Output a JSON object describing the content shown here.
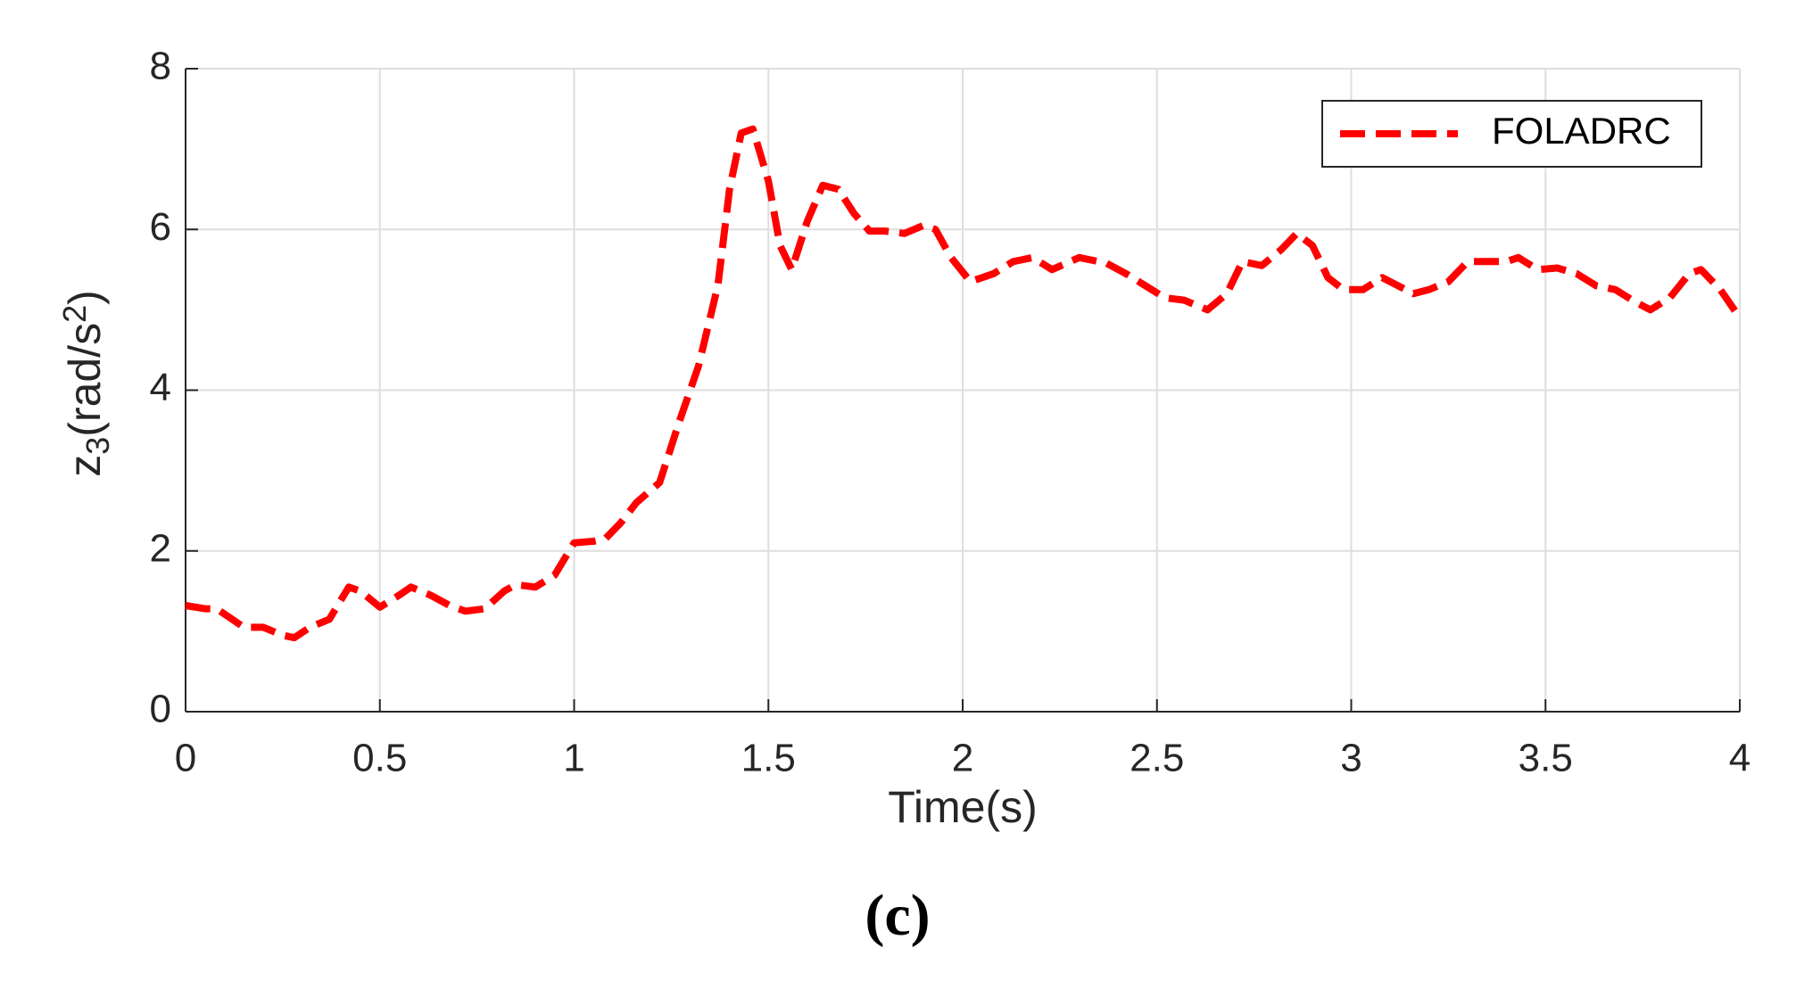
{
  "chart_data": {
    "type": "line",
    "xlabel": "Time(s)",
    "ylabel": [
      "z",
      "3",
      "(rad/s",
      "2",
      ")"
    ],
    "caption": "(c)",
    "xlim": [
      0,
      4
    ],
    "ylim": [
      0,
      8
    ],
    "xticks": [
      0,
      0.5,
      1,
      1.5,
      2,
      2.5,
      3,
      3.5,
      4
    ],
    "yticks": [
      0,
      2,
      4,
      6,
      8
    ],
    "grid": true,
    "legend": "top-right",
    "series": [
      {
        "name": "FOLADRC",
        "color": "#ff0000",
        "x": [
          0,
          0.05,
          0.08,
          0.12,
          0.15,
          0.2,
          0.25,
          0.28,
          0.32,
          0.37,
          0.42,
          0.45,
          0.5,
          0.55,
          0.58,
          0.63,
          0.68,
          0.72,
          0.77,
          0.82,
          0.85,
          0.9,
          0.95,
          1.0,
          1.05,
          1.08,
          1.12,
          1.16,
          1.22,
          1.27,
          1.32,
          1.37,
          1.4,
          1.43,
          1.46,
          1.5,
          1.53,
          1.56,
          1.6,
          1.64,
          1.68,
          1.72,
          1.76,
          1.8,
          1.85,
          1.9,
          1.93,
          1.97,
          2.02,
          2.08,
          2.13,
          2.18,
          2.23,
          2.3,
          2.37,
          2.42,
          2.47,
          2.52,
          2.57,
          2.63,
          2.68,
          2.72,
          2.77,
          2.82,
          2.86,
          2.9,
          2.94,
          2.98,
          3.03,
          3.08,
          3.12,
          3.16,
          3.2,
          3.25,
          3.3,
          3.35,
          3.4,
          3.43,
          3.48,
          3.53,
          3.58,
          3.63,
          3.68,
          3.73,
          3.77,
          3.82,
          3.87,
          3.9,
          3.95,
          4.0
        ],
        "values": [
          1.32,
          1.28,
          1.28,
          1.15,
          1.05,
          1.05,
          0.95,
          0.92,
          1.05,
          1.15,
          1.55,
          1.5,
          1.3,
          1.45,
          1.55,
          1.45,
          1.32,
          1.25,
          1.28,
          1.5,
          1.58,
          1.55,
          1.7,
          2.1,
          2.12,
          2.15,
          2.35,
          2.6,
          2.85,
          3.6,
          4.3,
          5.3,
          6.5,
          7.2,
          7.25,
          6.6,
          5.8,
          5.5,
          6.1,
          6.55,
          6.5,
          6.2,
          5.98,
          5.98,
          5.95,
          6.05,
          6.0,
          5.65,
          5.35,
          5.45,
          5.6,
          5.65,
          5.5,
          5.65,
          5.58,
          5.45,
          5.3,
          5.15,
          5.12,
          5.0,
          5.2,
          5.6,
          5.55,
          5.75,
          5.95,
          5.8,
          5.4,
          5.25,
          5.25,
          5.4,
          5.3,
          5.2,
          5.25,
          5.35,
          5.6,
          5.6,
          5.6,
          5.65,
          5.5,
          5.52,
          5.45,
          5.3,
          5.25,
          5.1,
          5.0,
          5.15,
          5.45,
          5.5,
          5.25,
          4.9
        ]
      }
    ]
  }
}
